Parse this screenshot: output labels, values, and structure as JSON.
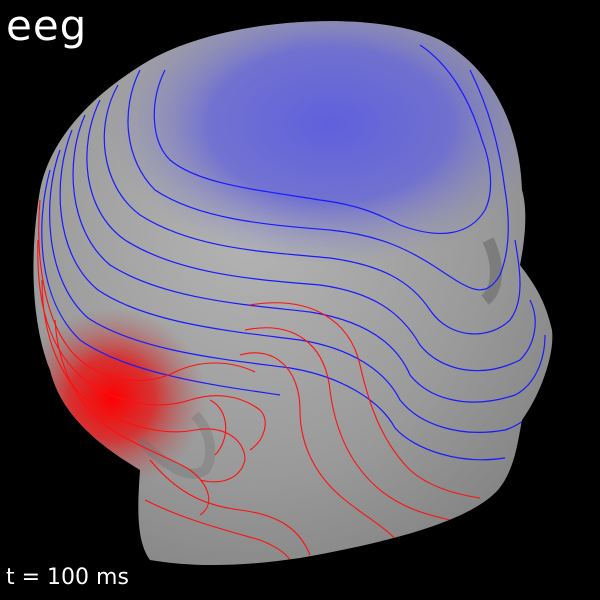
{
  "title": "eeg",
  "time_label": "t = 100 ms",
  "colors": {
    "background": "#000000",
    "head_surface": "#9c9c9c",
    "negative_field": "#6b6bdc",
    "positive_field": "#ff0000",
    "negative_contour": "#1a1aff",
    "positive_contour": "#ff1010"
  },
  "icons": [
    "head-surface-icon"
  ]
}
